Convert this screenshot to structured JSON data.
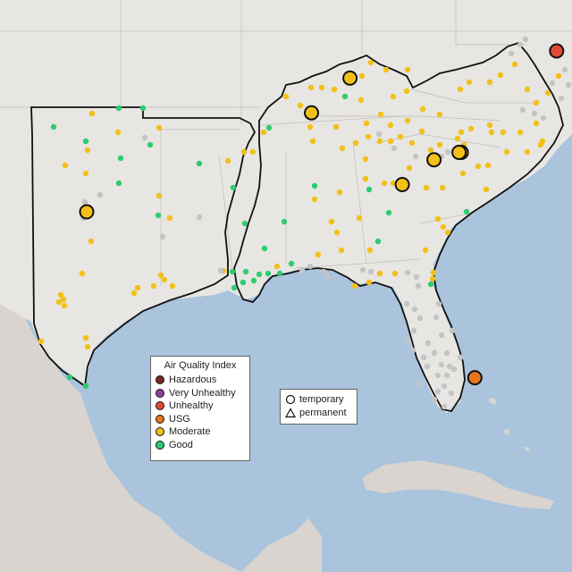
{
  "colors": {
    "ocean": "#a9c4dc",
    "land": "#e8e6e3",
    "mexico_land": "#d9d4cf",
    "border": "#111111",
    "state_line": "#b8b8b8",
    "Hazardous": "#7a2a24",
    "Very Unhealthy": "#8f3f97",
    "Unhealthy": "#e24a33",
    "USG": "#e8761e",
    "Moderate": "#f2c018",
    "Good": "#2ecc71",
    "No Data": "#c4c4c4"
  },
  "legend": {
    "title": "Air Quality Index",
    "items": [
      {
        "label": "Hazardous",
        "color": "#7a2a24"
      },
      {
        "label": "Very Unhealthy",
        "color": "#8f3f97"
      },
      {
        "label": "Unhealthy",
        "color": "#e24a33"
      },
      {
        "label": "USG",
        "color": "#e8761e"
      },
      {
        "label": "Moderate",
        "color": "#f2c018"
      },
      {
        "label": "Good",
        "color": "#2ecc71"
      }
    ]
  },
  "shape_legend": {
    "temporary": "temporary",
    "permanent": "permanent"
  },
  "monitors": {
    "temporary": [
      {
        "aqi": "Unhealthy",
        "lat": 39.3,
        "lon": -76.6
      },
      {
        "aqi": "USG",
        "lat": 26.1,
        "lon": -80.2
      },
      {
        "aqi": "Moderate",
        "lat": 38.2,
        "lon": -85.7
      },
      {
        "aqi": "Moderate",
        "lat": 36.8,
        "lon": -87.4
      },
      {
        "aqi": "Moderate",
        "lat": 35.2,
        "lon": -80.8
      },
      {
        "aqi": "Moderate",
        "lat": 34.9,
        "lon": -82.0
      },
      {
        "aqi": "Moderate",
        "lat": 33.9,
        "lon": -83.4
      },
      {
        "aqi": "Moderate",
        "lat": 35.2,
        "lon": -80.9
      },
      {
        "aqi": "Moderate",
        "lat": 32.8,
        "lon": -97.3
      }
    ]
  }
}
